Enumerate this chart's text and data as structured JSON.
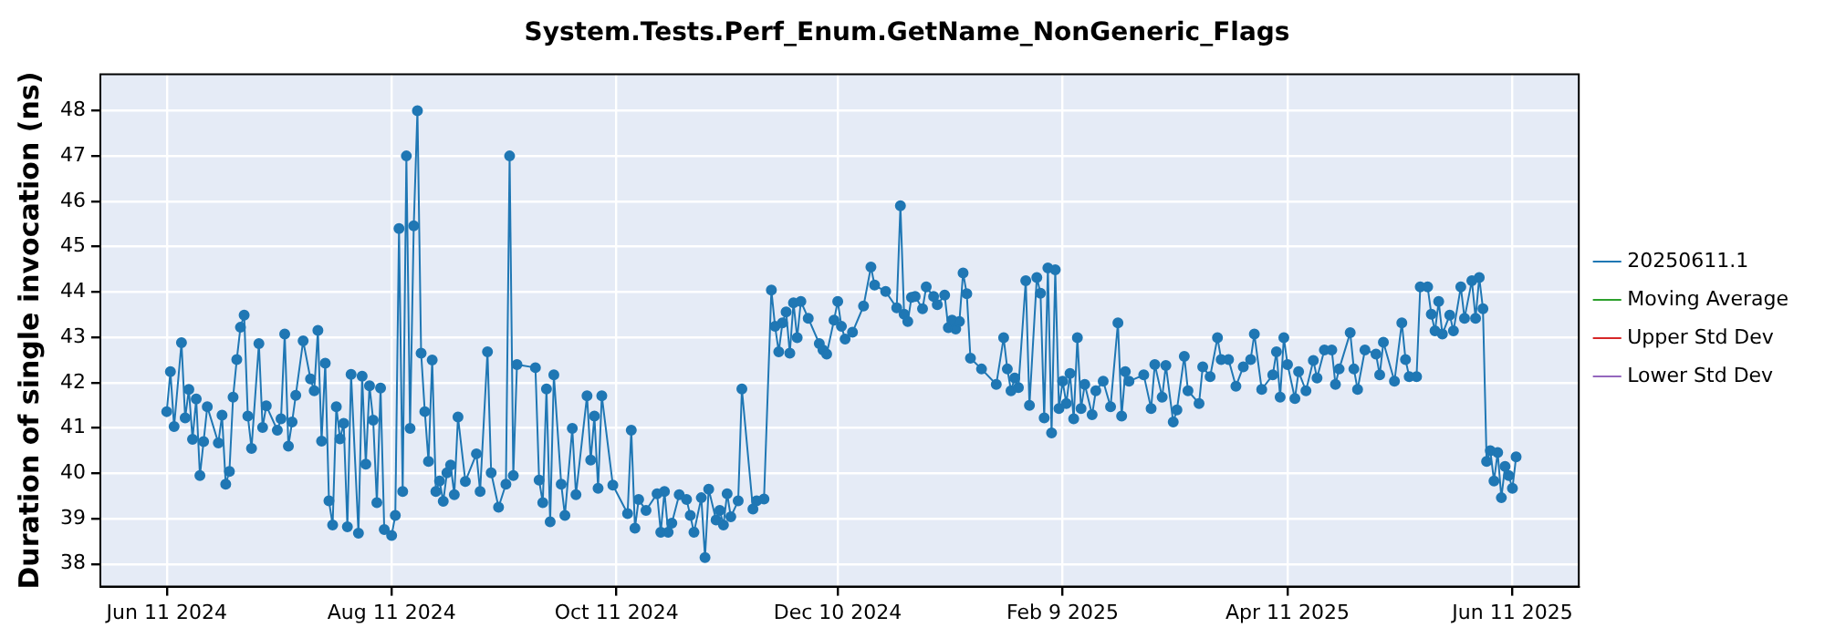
{
  "chart_data": {
    "type": "line",
    "title": "System.Tests.Perf_Enum.GetName_NonGeneric_Flags",
    "ylabel": "Duration of single invocation (ns)",
    "xlim": [
      "2024-05-24",
      "2025-06-29"
    ],
    "xticks": [
      {
        "value": "2024-06-11",
        "label": "Jun 11 2024"
      },
      {
        "value": "2024-08-11",
        "label": "Aug 11 2024"
      },
      {
        "value": "2024-10-11",
        "label": "Oct 11 2024"
      },
      {
        "value": "2024-12-10",
        "label": "Dec 10 2024"
      },
      {
        "value": "2025-02-09",
        "label": "Feb 9 2025"
      },
      {
        "value": "2025-04-11",
        "label": "Apr 11 2025"
      },
      {
        "value": "2025-06-11",
        "label": "Jun 11 2025"
      }
    ],
    "ylim": [
      37.5,
      48.8
    ],
    "yticks": [
      38,
      39,
      40,
      41,
      42,
      43,
      44,
      45,
      46,
      47,
      48
    ],
    "grid": true,
    "legend": "right",
    "marker": "circle",
    "line_style": "solid",
    "series": [
      {
        "name": "20250611.1",
        "color": "#1f77b4",
        "x": [
          "2024-06-11",
          "2024-06-12",
          "2024-06-13",
          "2024-06-15",
          "2024-06-16",
          "2024-06-17",
          "2024-06-18",
          "2024-06-19",
          "2024-06-20",
          "2024-06-21",
          "2024-06-22",
          "2024-06-25",
          "2024-06-26",
          "2024-06-27",
          "2024-06-28",
          "2024-06-29",
          "2024-06-30",
          "2024-07-01",
          "2024-07-02",
          "2024-07-03",
          "2024-07-04",
          "2024-07-06",
          "2024-07-07",
          "2024-07-08",
          "2024-07-11",
          "2024-07-12",
          "2024-07-13",
          "2024-07-14",
          "2024-07-15",
          "2024-07-16",
          "2024-07-18",
          "2024-07-20",
          "2024-07-21",
          "2024-07-22",
          "2024-07-23",
          "2024-07-24",
          "2024-07-25",
          "2024-07-26",
          "2024-07-27",
          "2024-07-28",
          "2024-07-29",
          "2024-07-30",
          "2024-07-31",
          "2024-08-02",
          "2024-08-03",
          "2024-08-04",
          "2024-08-05",
          "2024-08-06",
          "2024-08-07",
          "2024-08-08",
          "2024-08-09",
          "2024-08-11",
          "2024-08-12",
          "2024-08-13",
          "2024-08-14",
          "2024-08-15",
          "2024-08-16",
          "2024-08-17",
          "2024-08-18",
          "2024-08-19",
          "2024-08-20",
          "2024-08-21",
          "2024-08-22",
          "2024-08-23",
          "2024-08-24",
          "2024-08-25",
          "2024-08-26",
          "2024-08-27",
          "2024-08-28",
          "2024-08-29",
          "2024-08-31",
          "2024-09-03",
          "2024-09-04",
          "2024-09-06",
          "2024-09-07",
          "2024-09-09",
          "2024-09-11",
          "2024-09-12",
          "2024-09-13",
          "2024-09-14",
          "2024-09-19",
          "2024-09-20",
          "2024-09-21",
          "2024-09-22",
          "2024-09-23",
          "2024-09-24",
          "2024-09-26",
          "2024-09-27",
          "2024-09-29",
          "2024-09-30",
          "2024-10-03",
          "2024-10-04",
          "2024-10-05",
          "2024-10-06",
          "2024-10-07",
          "2024-10-10",
          "2024-10-14",
          "2024-10-15",
          "2024-10-16",
          "2024-10-17",
          "2024-10-19",
          "2024-10-22",
          "2024-10-23",
          "2024-10-24",
          "2024-10-25",
          "2024-10-26",
          "2024-10-28",
          "2024-10-30",
          "2024-10-31",
          "2024-11-01",
          "2024-11-03",
          "2024-11-04",
          "2024-11-05",
          "2024-11-07",
          "2024-11-08",
          "2024-11-09",
          "2024-11-10",
          "2024-11-11",
          "2024-11-13",
          "2024-11-14",
          "2024-11-17",
          "2024-11-18",
          "2024-11-20",
          "2024-11-22",
          "2024-11-23",
          "2024-11-24",
          "2024-11-25",
          "2024-11-26",
          "2024-11-27",
          "2024-11-28",
          "2024-11-29",
          "2024-11-30",
          "2024-12-02",
          "2024-12-05",
          "2024-12-06",
          "2024-12-07",
          "2024-12-09",
          "2024-12-10",
          "2024-12-11",
          "2024-12-12",
          "2024-12-14",
          "2024-12-17",
          "2024-12-19",
          "2024-12-20",
          "2024-12-23",
          "2024-12-26",
          "2024-12-27",
          "2024-12-28",
          "2024-12-29",
          "2024-12-30",
          "2024-12-31",
          "2025-01-02",
          "2025-01-03",
          "2025-01-05",
          "2025-01-06",
          "2025-01-08",
          "2025-01-09",
          "2025-01-10",
          "2025-01-11",
          "2025-01-12",
          "2025-01-13",
          "2025-01-14",
          "2025-01-15",
          "2025-01-18",
          "2025-01-22",
          "2025-01-24",
          "2025-01-25",
          "2025-01-26",
          "2025-01-27",
          "2025-01-28",
          "2025-01-30",
          "2025-01-31",
          "2025-02-02",
          "2025-02-03",
          "2025-02-04",
          "2025-02-05",
          "2025-02-06",
          "2025-02-07",
          "2025-02-08",
          "2025-02-09",
          "2025-02-10",
          "2025-02-11",
          "2025-02-12",
          "2025-02-13",
          "2025-02-14",
          "2025-02-15",
          "2025-02-17",
          "2025-02-18",
          "2025-02-20",
          "2025-02-22",
          "2025-02-24",
          "2025-02-25",
          "2025-02-26",
          "2025-02-27",
          "2025-03-03",
          "2025-03-05",
          "2025-03-06",
          "2025-03-08",
          "2025-03-09",
          "2025-03-11",
          "2025-03-12",
          "2025-03-14",
          "2025-03-15",
          "2025-03-18",
          "2025-03-19",
          "2025-03-21",
          "2025-03-23",
          "2025-03-24",
          "2025-03-26",
          "2025-03-28",
          "2025-03-30",
          "2025-04-01",
          "2025-04-02",
          "2025-04-04",
          "2025-04-07",
          "2025-04-08",
          "2025-04-09",
          "2025-04-10",
          "2025-04-11",
          "2025-04-13",
          "2025-04-14",
          "2025-04-16",
          "2025-04-18",
          "2025-04-19",
          "2025-04-21",
          "2025-04-23",
          "2025-04-24",
          "2025-04-25",
          "2025-04-28",
          "2025-04-29",
          "2025-04-30",
          "2025-05-02",
          "2025-05-05",
          "2025-05-06",
          "2025-05-07",
          "2025-05-10",
          "2025-05-12",
          "2025-05-13",
          "2025-05-14",
          "2025-05-16",
          "2025-05-17",
          "2025-05-19",
          "2025-05-20",
          "2025-05-21",
          "2025-05-22",
          "2025-05-23",
          "2025-05-25",
          "2025-05-26",
          "2025-05-28",
          "2025-05-29",
          "2025-05-31",
          "2025-06-01",
          "2025-06-02",
          "2025-06-03",
          "2025-06-04",
          "2025-06-05",
          "2025-06-06",
          "2025-06-07",
          "2025-06-08",
          "2025-06-09",
          "2025-06-10",
          "2025-06-11",
          "2025-06-12"
        ],
        "values": [
          41.36,
          42.24,
          41.03,
          42.88,
          41.22,
          41.85,
          40.75,
          41.64,
          39.95,
          40.7,
          41.47,
          40.67,
          41.28,
          39.76,
          40.04,
          41.68,
          42.51,
          43.22,
          43.49,
          41.26,
          40.55,
          42.86,
          41.01,
          41.49,
          40.95,
          41.2,
          43.07,
          40.6,
          41.13,
          41.72,
          42.92,
          42.08,
          41.82,
          43.15,
          40.71,
          42.43,
          39.39,
          38.86,
          41.47,
          40.76,
          41.1,
          38.82,
          42.18,
          38.68,
          42.14,
          40.2,
          41.93,
          41.17,
          39.35,
          41.88,
          38.76,
          38.63,
          39.07,
          45.4,
          39.6,
          47.0,
          40.99,
          45.46,
          48.0,
          42.65,
          41.36,
          40.26,
          42.5,
          39.6,
          39.83,
          39.38,
          40.01,
          40.18,
          39.53,
          41.24,
          39.82,
          40.43,
          39.6,
          42.68,
          40.01,
          39.25,
          39.76,
          47.0,
          39.95,
          42.4,
          42.33,
          39.85,
          39.35,
          41.86,
          38.93,
          42.17,
          39.76,
          39.07,
          40.99,
          39.53,
          41.71,
          40.29,
          41.26,
          39.67,
          41.71,
          39.74,
          39.11,
          40.95,
          38.79,
          39.42,
          39.18,
          39.55,
          38.7,
          39.6,
          38.7,
          38.9,
          39.53,
          39.42,
          39.07,
          38.7,
          39.46,
          38.14,
          39.65,
          38.97,
          39.18,
          38.86,
          39.55,
          39.04,
          39.39,
          41.86,
          39.21,
          39.39,
          39.43,
          44.04,
          43.24,
          42.68,
          43.32,
          43.56,
          42.65,
          43.76,
          42.99,
          43.79,
          43.42,
          42.86,
          42.72,
          42.63,
          43.38,
          43.79,
          43.24,
          42.96,
          43.11,
          43.69,
          44.55,
          44.15,
          44.01,
          43.65,
          45.9,
          43.51,
          43.35,
          43.88,
          43.9,
          43.63,
          44.11,
          43.9,
          43.72,
          43.93,
          43.21,
          43.38,
          43.18,
          43.35,
          44.42,
          43.96,
          42.54,
          42.3,
          41.96,
          42.99,
          42.3,
          41.82,
          42.1,
          41.89,
          44.25,
          41.5,
          44.32,
          43.97,
          41.22,
          44.53,
          40.89,
          44.49,
          41.43,
          42.03,
          41.54,
          42.2,
          41.2,
          42.99,
          41.43,
          41.96,
          41.29,
          41.82,
          42.03,
          41.47,
          43.32,
          41.26,
          42.24,
          42.03,
          42.17,
          41.43,
          42.4,
          41.68,
          42.38,
          41.13,
          41.4,
          42.58,
          41.82,
          41.54,
          42.35,
          42.13,
          42.99,
          42.51,
          42.51,
          41.92,
          42.35,
          42.51,
          43.07,
          41.85,
          42.17,
          42.68,
          41.68,
          42.99,
          42.4,
          41.65,
          42.24,
          41.82,
          42.49,
          42.1,
          42.72,
          42.72,
          41.96,
          42.3,
          43.1,
          42.3,
          41.85,
          42.72,
          42.63,
          42.17,
          42.89,
          42.03,
          43.32,
          42.51,
          42.13,
          42.13,
          44.11,
          44.11,
          43.51,
          43.14,
          43.79,
          43.07,
          43.49,
          43.14,
          44.11,
          43.42,
          44.25,
          43.42,
          44.32,
          43.63,
          40.26,
          40.5,
          39.83,
          40.46,
          39.46,
          40.15,
          39.95,
          39.67,
          40.36
        ]
      },
      {
        "name": "Moving Average",
        "color": "#2ca02c"
      },
      {
        "name": "Upper Std Dev",
        "color": "#d62728"
      },
      {
        "name": "Lower Std Dev",
        "color": "#9467bd"
      }
    ]
  }
}
